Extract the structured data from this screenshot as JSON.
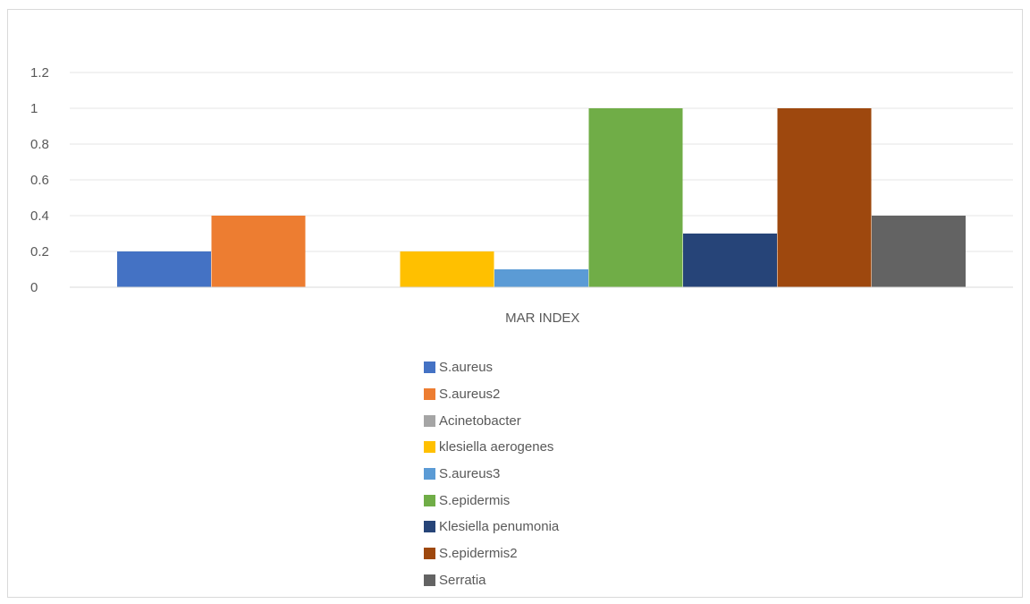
{
  "chart_data": {
    "type": "bar",
    "title": "",
    "xlabel": "",
    "ylabel": "",
    "categories": [
      "MAR INDEX"
    ],
    "ylim": [
      0,
      1.2
    ],
    "yticks": [
      "0",
      "0.2",
      "0.4",
      "0.6",
      "0.8",
      "1",
      "1.2"
    ],
    "grid": true,
    "legend_position": "bottom",
    "series": [
      {
        "name": "S.aureus",
        "values": [
          0.2
        ],
        "color": "#4472c4"
      },
      {
        "name": "S.aureus2",
        "values": [
          0.4
        ],
        "color": "#ed7d31"
      },
      {
        "name": "Acinetobacter",
        "values": [
          0
        ],
        "color": "#a5a5a5"
      },
      {
        "name": "klesiella aerogenes",
        "values": [
          0.2
        ],
        "color": "#ffc000"
      },
      {
        "name": "S.aureus3",
        "values": [
          0.1
        ],
        "color": "#5b9bd5"
      },
      {
        "name": "S.epidermis",
        "values": [
          1
        ],
        "color": "#70ad47"
      },
      {
        "name": "Klesiella penumonia",
        "values": [
          0.3
        ],
        "color": "#264478"
      },
      {
        "name": "S.epidermis2",
        "values": [
          1
        ],
        "color": "#9e480e"
      },
      {
        "name": "Serratia",
        "values": [
          0.4
        ],
        "color": "#636363"
      }
    ]
  }
}
